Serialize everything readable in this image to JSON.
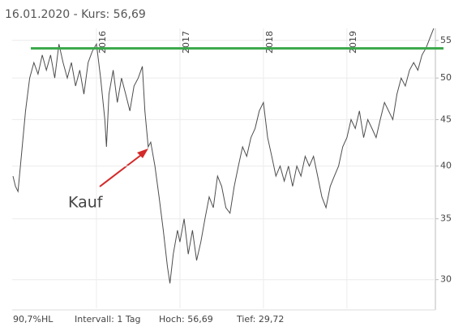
{
  "chart_data": {
    "type": "line",
    "title": "16.01.2020  -  Kurs: 56,69",
    "footer": [
      "90,7%HL",
      "Intervall: 1 Tag",
      "Hoch:  56,69",
      "Tief:  29,72"
    ],
    "annotations": [
      {
        "text": "Kauf",
        "color": "#d42a2a"
      }
    ],
    "log_scale": true,
    "grid": true,
    "color": "#4d4d4d",
    "hline": {
      "value": 53.9,
      "color": "#3aa84a"
    },
    "xlim": [
      2014.99,
      2020.06
    ],
    "xticks": [
      2016,
      2017,
      2018,
      2019
    ],
    "ylim": [
      27.9,
      56.7
    ],
    "yticks": [
      30,
      35,
      40,
      45,
      50,
      55
    ],
    "x": [
      2015.0,
      2015.03,
      2015.06,
      2015.1,
      2015.15,
      2015.2,
      2015.25,
      2015.3,
      2015.35,
      2015.4,
      2015.45,
      2015.5,
      2015.55,
      2015.6,
      2015.65,
      2015.7,
      2015.75,
      2015.8,
      2015.85,
      2015.9,
      2015.95,
      2016.0,
      2016.05,
      2016.1,
      2016.12,
      2016.15,
      2016.2,
      2016.25,
      2016.3,
      2016.35,
      2016.4,
      2016.45,
      2016.5,
      2016.55,
      2016.58,
      2016.62,
      2016.65,
      2016.7,
      2016.75,
      2016.8,
      2016.85,
      2016.88,
      2016.92,
      2016.97,
      2017.0,
      2017.05,
      2017.1,
      2017.15,
      2017.2,
      2017.25,
      2017.3,
      2017.35,
      2017.4,
      2017.45,
      2017.5,
      2017.55,
      2017.6,
      2017.65,
      2017.7,
      2017.75,
      2017.8,
      2017.85,
      2017.9,
      2017.95,
      2018.0,
      2018.05,
      2018.1,
      2018.15,
      2018.2,
      2018.25,
      2018.3,
      2018.35,
      2018.4,
      2018.45,
      2018.5,
      2018.55,
      2018.6,
      2018.65,
      2018.7,
      2018.75,
      2018.8,
      2018.85,
      2018.9,
      2018.95,
      2019.0,
      2019.05,
      2019.1,
      2019.15,
      2019.2,
      2019.25,
      2019.3,
      2019.35,
      2019.4,
      2019.45,
      2019.5,
      2019.55,
      2019.6,
      2019.65,
      2019.7,
      2019.75,
      2019.8,
      2019.85,
      2019.9,
      2019.95,
      2020.0,
      2020.04
    ],
    "values": [
      39,
      38,
      37.5,
      41,
      46,
      50,
      52,
      50.5,
      53,
      51,
      53,
      50,
      54.5,
      52,
      50,
      52,
      49,
      51,
      48,
      52,
      53.5,
      54.5,
      50,
      45,
      42,
      48,
      51,
      47,
      50,
      48,
      46,
      49,
      50,
      51.5,
      46,
      42,
      42.5,
      40,
      37,
      34,
      31,
      29.72,
      32,
      34,
      33,
      35,
      32,
      34,
      31.5,
      33,
      35,
      37,
      36,
      39,
      38,
      36,
      35.5,
      38,
      40,
      42,
      41,
      43,
      44,
      46,
      47,
      43,
      41,
      39,
      40,
      38.5,
      40,
      38,
      40,
      39,
      41,
      40,
      41,
      39,
      37,
      36,
      38,
      39,
      40,
      42,
      43,
      45,
      44,
      46,
      43,
      45,
      44,
      43,
      45,
      47,
      46,
      45,
      48,
      50,
      49,
      51,
      52,
      51,
      53,
      54,
      55.5,
      56.69
    ]
  }
}
